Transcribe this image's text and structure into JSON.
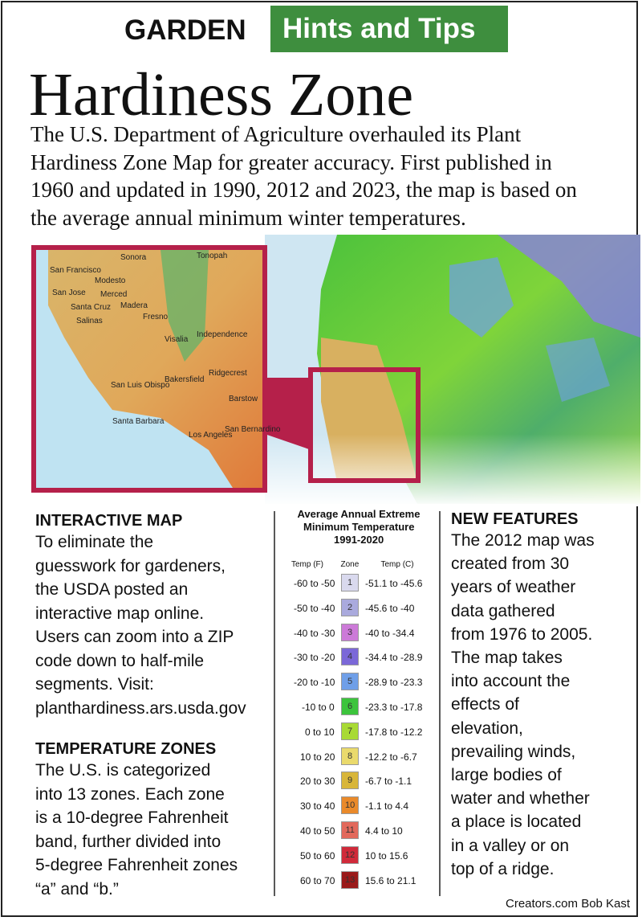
{
  "header": {
    "label": "GARDEN",
    "badge": "Hints and Tips"
  },
  "title": "Hardiness Zone",
  "intro": [
    "The U.S. Department of Agriculture overhauled its Plant",
    "Hardiness Zone Map for greater accuracy. First published in",
    "1960 and updated in 1990, 2012 and 2023, the map is based on",
    "the average annual minimum winter temperatures."
  ],
  "map": {
    "labels": [
      "Sonora",
      "Tonopah",
      "San Francisco",
      "Modesto",
      "San Jose",
      "Merced",
      "Santa Cruz",
      "Madera",
      "Fresno",
      "Salinas",
      "Visalia",
      "Independence",
      "Bakersfield",
      "Ridgecrest",
      "San Luis Obispo",
      "Santa Barbara",
      "Los Angeles",
      "Barstow",
      "San Bernardino"
    ]
  },
  "interactive_map": {
    "heading": "INTERACTIVE MAP",
    "lines": [
      "To eliminate the",
      "guesswork for gardeners,",
      "the USDA posted an",
      "interactive map online.",
      "Users can zoom into a ZIP",
      "code down to half-mile",
      "segments. Visit:",
      "planthardiness.ars.usda.gov"
    ]
  },
  "temperature_zones": {
    "heading": "TEMPERATURE ZONES",
    "lines": [
      "The U.S. is categorized",
      "into 13 zones. Each zone",
      "is a 10-degree Fahrenheit",
      "band, further divided into",
      "5-degree Fahrenheit zones",
      "“a” and “b.”"
    ]
  },
  "legend": {
    "title": [
      "Average Annual Extreme",
      "Minimum Temperature",
      "1991-2020"
    ],
    "columns": [
      "Temp (F)",
      "Zone",
      "Temp (C)"
    ],
    "rows": [
      {
        "temp_f": "-60 to -50",
        "zone": "1",
        "temp_c": "-51.1 to -45.6",
        "color": "#d9d9ee"
      },
      {
        "temp_f": "-50 to -40",
        "zone": "2",
        "temp_c": "-45.6 to -40",
        "color": "#aaaadd"
      },
      {
        "temp_f": "-40 to -30",
        "zone": "3",
        "temp_c": "-40 to -34.4",
        "color": "#cc7ad8"
      },
      {
        "temp_f": "-30 to -20",
        "zone": "4",
        "temp_c": "-34.4 to -28.9",
        "color": "#7b68d8"
      },
      {
        "temp_f": "-20 to -10",
        "zone": "5",
        "temp_c": "-28.9 to -23.3",
        "color": "#6f9fe8"
      },
      {
        "temp_f": "-10 to 0",
        "zone": "6",
        "temp_c": "-23.3 to -17.8",
        "color": "#3cc43c"
      },
      {
        "temp_f": "0 to 10",
        "zone": "7",
        "temp_c": "-17.8 to -12.2",
        "color": "#a8da34"
      },
      {
        "temp_f": "10 to 20",
        "zone": "8",
        "temp_c": "-12.2 to -6.7",
        "color": "#eada6c"
      },
      {
        "temp_f": "20 to 30",
        "zone": "9",
        "temp_c": "-6.7 to -1.1",
        "color": "#d8b63a"
      },
      {
        "temp_f": "30 to 40",
        "zone": "10",
        "temp_c": "-1.1 to 4.4",
        "color": "#ea8a2a"
      },
      {
        "temp_f": "40 to 50",
        "zone": "11",
        "temp_c": "4.4 to 10",
        "color": "#e2695c"
      },
      {
        "temp_f": "50 to 60",
        "zone": "12",
        "temp_c": "10 to 15.6",
        "color": "#d02a3a"
      },
      {
        "temp_f": "60 to 70",
        "zone": "13",
        "temp_c": "15.6 to 21.1",
        "color": "#9a1a1a"
      }
    ]
  },
  "new_features": {
    "heading": "NEW FEATURES",
    "lines": [
      "The 2012 map was",
      "created from 30",
      "years of weather",
      "data gathered",
      "from 1976 to 2005.",
      "The map takes",
      "into account the",
      "effects of",
      "elevation,",
      "prevailing winds,",
      "large bodies of",
      "water and whether",
      "a place is located",
      "in a valley or on",
      "top of a ridge."
    ]
  },
  "credit": "Creators.com Bob Kast"
}
